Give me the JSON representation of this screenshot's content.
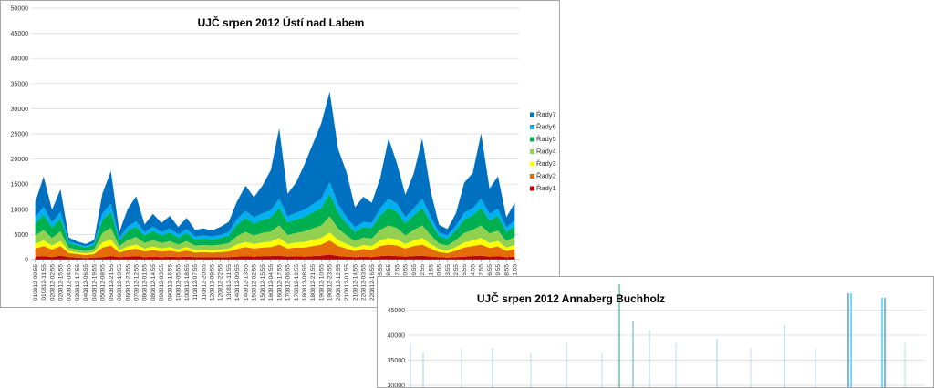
{
  "chart_data": [
    {
      "type": "area",
      "stacked": true,
      "title": "UJČ srpen 2012 Ústí nad Labem",
      "ylim": [
        0,
        50000
      ],
      "yticks": [
        0,
        5000,
        10000,
        15000,
        20000,
        25000,
        30000,
        35000,
        40000,
        45000,
        50000
      ],
      "grid": true,
      "legend_position": "right",
      "x": [
        "010812-00:55",
        "010812-11:55",
        "020812-02:55",
        "020812-15:55",
        "030812-04:55",
        "030812-17:55",
        "040812-06:55",
        "040812-19:55",
        "050812-08:55",
        "050812-21:55",
        "060812-10:55",
        "060812-23:55",
        "070812-12:55",
        "080812-01:55",
        "080812-14:55",
        "090812-03:55",
        "090812-16:55",
        "100812-05:55",
        "100812-18:55",
        "110812-07:55",
        "110812-20:55",
        "120812-09:55",
        "120812-22:55",
        "130812-11:55",
        "140812-00:55",
        "140812-13:55",
        "150812-02:55",
        "150812-15:55",
        "160812-04:55",
        "160812-17:55",
        "170812-06:55",
        "170812-19:55",
        "180812-08:55",
        "180812-21:55",
        "190812-10:55",
        "190812-23:55",
        "200812-12:55",
        "210812-01:55",
        "210812-14:55",
        "220812-03:55",
        "220812-16:55",
        "230812-05:55",
        "230812-18:55",
        "240812-07:55",
        "240812-20:55",
        "250812-09:55",
        "250812-22:55",
        "260812-11:55",
        "270812-00:55",
        "270812-13:55",
        "280812-02:55",
        "280812-15:55",
        "290812-04:55",
        "290812-17:55",
        "300812-06:55",
        "300812-19:55",
        "310812-08:55",
        "310812-21:55"
      ],
      "series": [
        {
          "name": "Řady1",
          "color": "#c00000",
          "values": [
            600,
            700,
            500,
            800,
            500,
            400,
            300,
            400,
            500,
            700,
            500,
            600,
            700,
            500,
            600,
            500,
            600,
            500,
            600,
            500,
            500,
            500,
            500,
            500,
            600,
            700,
            600,
            700,
            700,
            800,
            600,
            700,
            600,
            700,
            800,
            1000,
            700,
            600,
            500,
            600,
            500,
            700,
            800,
            700,
            600,
            700,
            800,
            600,
            500,
            400,
            500,
            600,
            700,
            800,
            600,
            700,
            500,
            600
          ]
        },
        {
          "name": "Řady2",
          "color": "#e46c0a",
          "values": [
            1600,
            2000,
            1500,
            1900,
            800,
            700,
            600,
            700,
            1900,
            2100,
            900,
            1300,
            1500,
            1100,
            1300,
            1100,
            1200,
            1000,
            1200,
            900,
            1000,
            900,
            1000,
            1100,
            1500,
            1800,
            1600,
            1700,
            1800,
            2200,
            1600,
            1700,
            1800,
            2000,
            2200,
            2800,
            2000,
            1600,
            1200,
            1500,
            1400,
            2000,
            2200,
            2100,
            1600,
            2000,
            2200,
            1600,
            1000,
            900,
            1300,
            1800,
            2000,
            2200,
            1700,
            1900,
            1200,
            1500
          ]
        },
        {
          "name": "Řady3",
          "color": "#ffff00",
          "values": [
            900,
            1100,
            800,
            1000,
            400,
            300,
            300,
            400,
            1000,
            1200,
            500,
            700,
            800,
            600,
            700,
            600,
            700,
            500,
            700,
            500,
            500,
            500,
            500,
            600,
            900,
            1000,
            900,
            1000,
            1100,
            1300,
            900,
            1000,
            1100,
            1200,
            1300,
            1600,
            1200,
            900,
            700,
            800,
            800,
            1100,
            1300,
            1200,
            900,
            1100,
            1300,
            900,
            600,
            500,
            700,
            1000,
            1100,
            1300,
            1000,
            1100,
            700,
            800
          ]
        },
        {
          "name": "Řady4",
          "color": "#92d050",
          "values": [
            1700,
            2100,
            1500,
            1900,
            700,
            600,
            500,
            600,
            1900,
            2300,
            800,
            1300,
            1500,
            1100,
            1300,
            1100,
            1200,
            1000,
            1200,
            900,
            900,
            900,
            1000,
            1100,
            1700,
            2000,
            1700,
            1900,
            2000,
            2500,
            1800,
            1900,
            2100,
            2300,
            2500,
            3200,
            2300,
            1700,
            1300,
            1500,
            1500,
            2100,
            2500,
            2300,
            1700,
            2100,
            2500,
            1800,
            1100,
            1000,
            1400,
            1900,
            2100,
            2500,
            1900,
            2100,
            1300,
            1600
          ]
        },
        {
          "name": "Řady5",
          "color": "#00b050",
          "values": [
            2400,
            3000,
            2100,
            2600,
            900,
            800,
            700,
            800,
            2600,
            3200,
            1100,
            1800,
            2100,
            1500,
            1800,
            1500,
            1700,
            1400,
            1600,
            1200,
            1300,
            1200,
            1300,
            1500,
            2300,
            2800,
            2400,
            2600,
            2800,
            3500,
            2500,
            2700,
            2900,
            3200,
            3500,
            4500,
            3200,
            2400,
            1800,
            2100,
            2100,
            2900,
            3500,
            3200,
            2400,
            2900,
            3500,
            2500,
            1500,
            1400,
            1900,
            2700,
            2900,
            3500,
            2600,
            2900,
            1800,
            2200
          ]
        },
        {
          "name": "Řady6",
          "color": "#00b0f0",
          "values": [
            1200,
            1600,
            1000,
            1300,
            400,
            300,
            300,
            400,
            1300,
            1600,
            500,
            900,
            1000,
            700,
            900,
            700,
            800,
            600,
            800,
            600,
            600,
            600,
            600,
            700,
            1100,
            1400,
            1200,
            1300,
            1400,
            1800,
            1200,
            1300,
            1400,
            1600,
            1800,
            2300,
            1600,
            1200,
            900,
            1000,
            1000,
            1400,
            1800,
            1600,
            1200,
            1400,
            1800,
            1200,
            700,
            600,
            900,
            1300,
            1400,
            1800,
            1300,
            1400,
            900,
            1100
          ]
        },
        {
          "name": "Řady7",
          "color": "#0070c0",
          "values": [
            3000,
            6000,
            2500,
            4500,
            700,
            500,
            400,
            600,
            4000,
            6500,
            1200,
            3500,
            5000,
            1500,
            2500,
            1800,
            2500,
            1500,
            2200,
            1300,
            1400,
            1200,
            1600,
            2000,
            3500,
            5000,
            4000,
            5500,
            8000,
            14000,
            4500,
            6000,
            9000,
            12000,
            15000,
            18000,
            11000,
            9000,
            4000,
            5000,
            4000,
            6000,
            12000,
            8000,
            4500,
            7000,
            12000,
            5000,
            1500,
            1300,
            2500,
            6000,
            7000,
            13000,
            5000,
            6500,
            2000,
            3500
          ]
        }
      ]
    },
    {
      "type": "line",
      "title": "UJČ srpen 2012 Annaberg Buchholz",
      "yticks": [
        30000,
        35000,
        40000,
        45000
      ],
      "ylim": [
        28000,
        47000
      ],
      "grid": true
    }
  ]
}
